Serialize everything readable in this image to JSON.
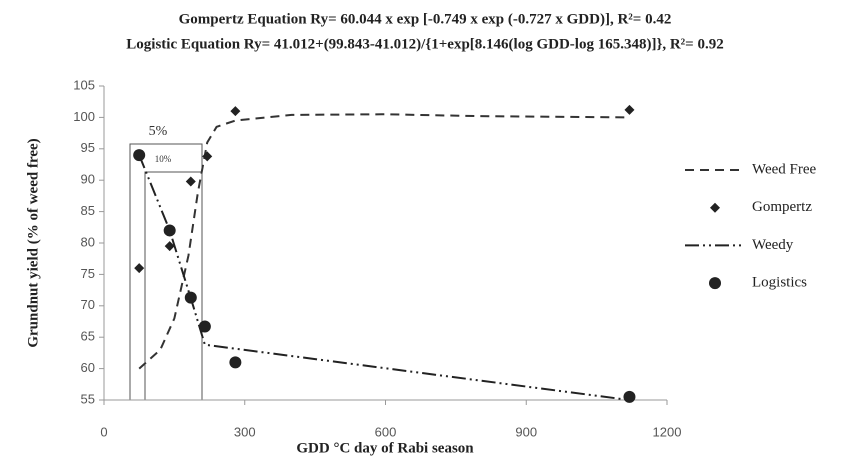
{
  "chart_data": {
    "type": "line",
    "title": [
      "Gompertz Equation Ry= 60.044 x exp [-0.749 x exp (-0.727 x GDD)],  R²= 0.42",
      "Logistic Equation Ry= 41.012+(99.843-41.012)/{1+exp[8.146(log GDD-log 165.348)]}, R²= 0.92"
    ],
    "x_label": "GDD °C day of Rabi season",
    "y_label": "Grundnut yield (% of weed free)",
    "annotations": [
      "5%",
      "10%"
    ],
    "xlim": [
      0,
      1200
    ],
    "xticks": [
      0,
      300,
      600,
      900,
      1200
    ],
    "ylim": [
      55,
      105
    ],
    "yticks": [
      55,
      60,
      65,
      70,
      75,
      80,
      85,
      90,
      95,
      100,
      105
    ],
    "grid": false,
    "series": [
      {
        "name": "Weed Free",
        "color": "#333333",
        "kind": "line",
        "dash": "9,6",
        "x": [
          75,
          120,
          150,
          180,
          200,
          220,
          240,
          280,
          400,
          600,
          800,
          1120
        ],
        "values": [
          60,
          63,
          68,
          78,
          88,
          96,
          98.5,
          99.5,
          100.4,
          100.5,
          100.2,
          100
        ]
      },
      {
        "name": "Gompertz",
        "color": "#222222",
        "kind": "scatter",
        "marker": "diamond",
        "x": [
          75,
          140,
          185,
          220,
          280,
          1120
        ],
        "values": [
          76,
          79.5,
          89.8,
          93.8,
          101,
          101.2
        ]
      },
      {
        "name": "Weedy",
        "color": "#222222",
        "kind": "line",
        "dash": "14,4,2,4,2,4",
        "x": [
          75,
          140,
          190,
          215,
          1120
        ],
        "values": [
          94,
          82,
          70,
          63.8,
          55
        ]
      },
      {
        "name": "Logistics",
        "color": "#222222",
        "kind": "scatter",
        "marker": "circle",
        "x": [
          75,
          140,
          185,
          215,
          280,
          1120
        ],
        "values": [
          94,
          82,
          71.3,
          66.7,
          61,
          55.5
        ]
      }
    ]
  }
}
